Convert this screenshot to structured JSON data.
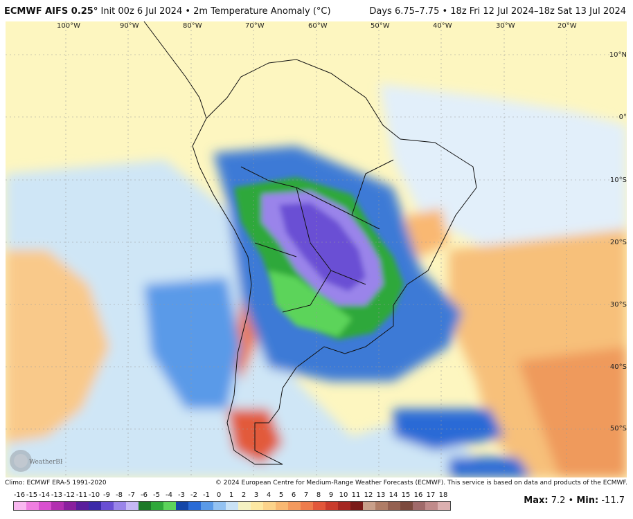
{
  "header": {
    "model": "ECMWF AIFS 0.25",
    "degree": "°",
    "init_text": " Init 00z 6 Jul 2024 • 2m Temperature Anomaly (°C)",
    "valid_text": "Days 6.75–7.75 • 18z Fri 12 Jul 2024–18z Sat 13 Jul 2024"
  },
  "map": {
    "longitudes": [
      "100°W",
      "90°W",
      "80°W",
      "70°W",
      "60°W",
      "50°W",
      "40°W",
      "30°W",
      "20°W"
    ],
    "latitudes": [
      "10°N",
      "0°",
      "10°S",
      "20°S",
      "30°S",
      "40°S",
      "50°S"
    ],
    "ocean_color": "#fdf6c0",
    "watermark": "WeatherBELL"
  },
  "footer": {
    "climo": "Climo: ECMWF ERA-5 1991-2020",
    "copyright": "© 2024 European Centre for Medium-Range Weather Forecasts (ECMWF). This service is based on data and products of the ECMWF."
  },
  "colorbar": {
    "labels": [
      "-16",
      "-15",
      "-14",
      "-13",
      "-12",
      "-11",
      "-10",
      "-9",
      "-8",
      "-7",
      "-6",
      "-5",
      "-4",
      "-3",
      "-2",
      "-1",
      "0",
      "1",
      "2",
      "3",
      "4",
      "5",
      "6",
      "7",
      "8",
      "9",
      "10",
      "11",
      "12",
      "13",
      "14",
      "15",
      "16",
      "17",
      "18"
    ],
    "colors": [
      "#f9b8f0",
      "#f07ee0",
      "#d94fcf",
      "#b22fb0",
      "#8a1f9e",
      "#5a1d9c",
      "#3c2aa8",
      "#6a4fd4",
      "#9a84ea",
      "#c6b8f6",
      "#1d7a28",
      "#2fa83a",
      "#5cd45a",
      "#1446a8",
      "#2a6bd6",
      "#5a9ae8",
      "#93c2f2",
      "#c9e2f6",
      "#f5f2c2",
      "#fde8a2",
      "#fcd38a",
      "#f9b872",
      "#f49a5e",
      "#ee7c4c",
      "#e2573a",
      "#c93b2c",
      "#a52722",
      "#7a1a18",
      "#c9a08a",
      "#b07d66",
      "#946050",
      "#7c4a3e",
      "#a06a6a",
      "#c08a8a",
      "#dcb0b0"
    ]
  },
  "stats": {
    "max_label": "Max:",
    "max_value": "7.2",
    "separator": " • ",
    "min_label": "Min:",
    "min_value": "-11.7"
  }
}
